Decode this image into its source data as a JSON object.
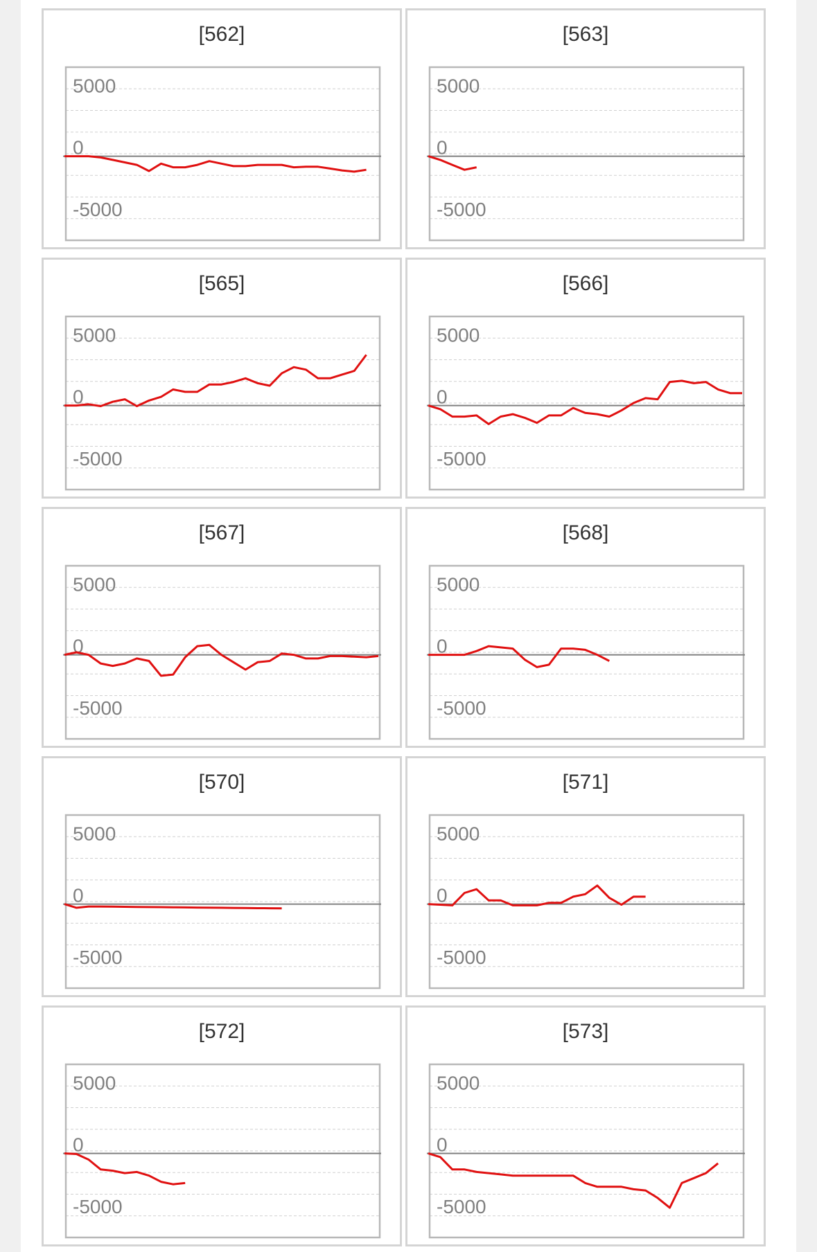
{
  "colors": {
    "series": "#e01010",
    "zero_line": "#808080",
    "grid": "#d0d0d0",
    "frame": "#b8b8b8",
    "cell_border": "#d4d4d4"
  },
  "chart_data": [
    {
      "id": "562",
      "type": "line",
      "title": "[562]",
      "ylim": [
        -6800,
        7200
      ],
      "yticks": [
        "5000",
        "0",
        "-5000"
      ],
      "ytick_values": [
        5000,
        0,
        -5000
      ],
      "values": [
        0,
        0,
        0,
        -100,
        -300,
        -500,
        -700,
        -1200,
        -600,
        -900,
        -900,
        -700,
        -400,
        -600,
        -800,
        -800,
        -700,
        -700,
        -700,
        -900,
        -850,
        -850,
        -1000,
        -1150,
        -1250,
        -1100
      ]
    },
    {
      "id": "563",
      "type": "line",
      "title": "[563]",
      "ylim": [
        -6800,
        7200
      ],
      "yticks": [
        "5000",
        "0",
        "-5000"
      ],
      "ytick_values": [
        5000,
        0,
        -5000
      ],
      "values": [
        0,
        -300,
        -700,
        -1100,
        -900
      ]
    },
    {
      "id": "565",
      "type": "line",
      "title": "[565]",
      "ylim": [
        -6800,
        7200
      ],
      "yticks": [
        "5000",
        "0",
        "-5000"
      ],
      "ytick_values": [
        5000,
        0,
        -5000
      ],
      "values": [
        0,
        0,
        100,
        -50,
        300,
        500,
        -50,
        400,
        700,
        1300,
        1100,
        1100,
        1700,
        1700,
        1900,
        2200,
        1800,
        1600,
        2600,
        3100,
        2900,
        2200,
        2200,
        2500,
        2800,
        4100
      ]
    },
    {
      "id": "566",
      "type": "line",
      "title": "[566]",
      "ylim": [
        -6800,
        7200
      ],
      "yticks": [
        "5000",
        "0",
        "-5000"
      ],
      "ytick_values": [
        5000,
        0,
        -5000
      ],
      "values": [
        0,
        -300,
        -900,
        -900,
        -800,
        -1500,
        -900,
        -700,
        -1000,
        -1400,
        -800,
        -800,
        -200,
        -600,
        -700,
        -900,
        -400,
        200,
        600,
        500,
        1900,
        2000,
        1800,
        1900,
        1300,
        1000,
        1000
      ]
    },
    {
      "id": "567",
      "type": "line",
      "title": "[567]",
      "ylim": [
        -6800,
        7200
      ],
      "yticks": [
        "5000",
        "0",
        "-5000"
      ],
      "ytick_values": [
        5000,
        0,
        -5000
      ],
      "values": [
        0,
        200,
        0,
        -700,
        -900,
        -700,
        -300,
        -500,
        -1700,
        -1600,
        -200,
        700,
        800,
        0,
        -600,
        -1200,
        -600,
        -500,
        100,
        0,
        -300,
        -300,
        -100,
        -100,
        -150,
        -200,
        -100
      ]
    },
    {
      "id": "568",
      "type": "line",
      "title": "[568]",
      "ylim": [
        -6800,
        7200
      ],
      "yticks": [
        "5000",
        "0",
        "-5000"
      ],
      "ytick_values": [
        5000,
        0,
        -5000
      ],
      "values": [
        0,
        0,
        0,
        0,
        300,
        700,
        600,
        500,
        -400,
        -1000,
        -800,
        500,
        500,
        400,
        0,
        -500
      ]
    },
    {
      "id": "570",
      "type": "line",
      "title": "[570]",
      "ylim": [
        -6800,
        7200
      ],
      "yticks": [
        "5000",
        "0",
        "-5000"
      ],
      "ytick_values": [
        5000,
        0,
        -5000
      ],
      "values": [
        0,
        -300,
        -200,
        -200,
        -210,
        -220,
        -230,
        -240,
        -250,
        -260,
        -270,
        -280,
        -290,
        -300,
        -310,
        -320,
        -330,
        -340,
        -350
      ]
    },
    {
      "id": "571",
      "type": "line",
      "title": "[571]",
      "ylim": [
        -6800,
        7200
      ],
      "yticks": [
        "5000",
        "0",
        "-5000"
      ],
      "ytick_values": [
        5000,
        0,
        -5000
      ],
      "values": [
        0,
        -50,
        -100,
        900,
        1200,
        300,
        300,
        -100,
        -100,
        -100,
        100,
        100,
        600,
        800,
        1500,
        500,
        -50,
        600,
        600
      ]
    },
    {
      "id": "572",
      "type": "line",
      "title": "[572]",
      "ylim": [
        -6800,
        7200
      ],
      "yticks": [
        "5000",
        "0",
        "-5000"
      ],
      "ytick_values": [
        5000,
        0,
        -5000
      ],
      "values": [
        0,
        -50,
        -500,
        -1300,
        -1400,
        -1600,
        -1500,
        -1800,
        -2300,
        -2500,
        -2400
      ]
    },
    {
      "id": "573",
      "type": "line",
      "title": "[573]",
      "ylim": [
        -6800,
        7200
      ],
      "yticks": [
        "5000",
        "0",
        "-5000"
      ],
      "ytick_values": [
        5000,
        0,
        -5000
      ],
      "values": [
        0,
        -300,
        -1300,
        -1300,
        -1500,
        -1600,
        -1700,
        -1800,
        -1800,
        -1800,
        -1800,
        -1800,
        -1800,
        -2400,
        -2700,
        -2700,
        -2700,
        -2900,
        -3000,
        -3600,
        -4400,
        -2400,
        -2000,
        -1600,
        -800
      ]
    }
  ]
}
